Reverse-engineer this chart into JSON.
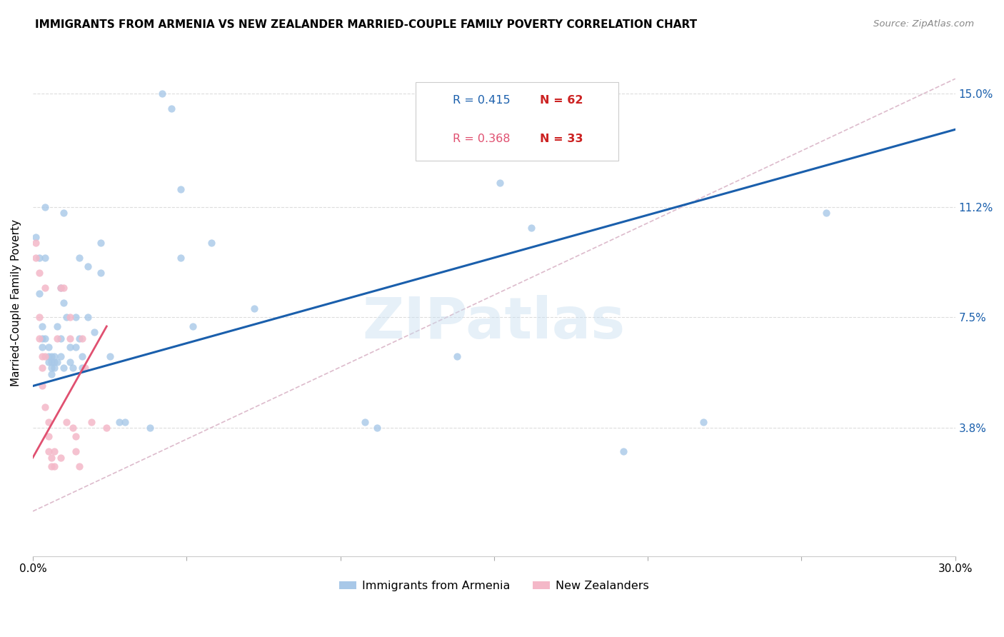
{
  "title": "IMMIGRANTS FROM ARMENIA VS NEW ZEALANDER MARRIED-COUPLE FAMILY POVERTY CORRELATION CHART",
  "source": "Source: ZipAtlas.com",
  "ylabel": "Married-Couple Family Poverty",
  "ytick_labels": [
    "15.0%",
    "11.2%",
    "7.5%",
    "3.8%"
  ],
  "ytick_values": [
    0.15,
    0.112,
    0.075,
    0.038
  ],
  "xlim": [
    0.0,
    0.3
  ],
  "ylim": [
    -0.005,
    0.165
  ],
  "color_blue": "#a8c8e8",
  "color_pink": "#f4b8c8",
  "trendline_blue": "#1a5fac",
  "trendline_pink": "#e05070",
  "trendline_dashed_color": "#ddbbcc",
  "watermark": "ZIPatlas",
  "blue_scatter": [
    [
      0.001,
      0.102
    ],
    [
      0.002,
      0.095
    ],
    [
      0.002,
      0.083
    ],
    [
      0.003,
      0.072
    ],
    [
      0.003,
      0.068
    ],
    [
      0.003,
      0.065
    ],
    [
      0.004,
      0.112
    ],
    [
      0.004,
      0.095
    ],
    [
      0.004,
      0.068
    ],
    [
      0.005,
      0.065
    ],
    [
      0.005,
      0.062
    ],
    [
      0.005,
      0.06
    ],
    [
      0.006,
      0.062
    ],
    [
      0.006,
      0.06
    ],
    [
      0.006,
      0.058
    ],
    [
      0.006,
      0.056
    ],
    [
      0.007,
      0.062
    ],
    [
      0.007,
      0.06
    ],
    [
      0.007,
      0.058
    ],
    [
      0.008,
      0.072
    ],
    [
      0.008,
      0.06
    ],
    [
      0.009,
      0.085
    ],
    [
      0.009,
      0.068
    ],
    [
      0.009,
      0.062
    ],
    [
      0.01,
      0.058
    ],
    [
      0.01,
      0.11
    ],
    [
      0.01,
      0.08
    ],
    [
      0.011,
      0.075
    ],
    [
      0.012,
      0.065
    ],
    [
      0.012,
      0.06
    ],
    [
      0.013,
      0.058
    ],
    [
      0.014,
      0.075
    ],
    [
      0.014,
      0.065
    ],
    [
      0.015,
      0.095
    ],
    [
      0.015,
      0.068
    ],
    [
      0.016,
      0.062
    ],
    [
      0.016,
      0.058
    ],
    [
      0.018,
      0.092
    ],
    [
      0.018,
      0.075
    ],
    [
      0.02,
      0.07
    ],
    [
      0.022,
      0.1
    ],
    [
      0.022,
      0.09
    ],
    [
      0.025,
      0.062
    ],
    [
      0.028,
      0.04
    ],
    [
      0.03,
      0.04
    ],
    [
      0.038,
      0.038
    ],
    [
      0.042,
      0.15
    ],
    [
      0.045,
      0.145
    ],
    [
      0.048,
      0.118
    ],
    [
      0.048,
      0.095
    ],
    [
      0.052,
      0.072
    ],
    [
      0.058,
      0.1
    ],
    [
      0.072,
      0.078
    ],
    [
      0.108,
      0.04
    ],
    [
      0.112,
      0.038
    ],
    [
      0.138,
      0.062
    ],
    [
      0.152,
      0.12
    ],
    [
      0.162,
      0.105
    ],
    [
      0.192,
      0.03
    ],
    [
      0.218,
      0.04
    ],
    [
      0.258,
      0.11
    ]
  ],
  "pink_scatter": [
    [
      0.001,
      0.1
    ],
    [
      0.001,
      0.095
    ],
    [
      0.002,
      0.09
    ],
    [
      0.002,
      0.075
    ],
    [
      0.002,
      0.068
    ],
    [
      0.003,
      0.062
    ],
    [
      0.003,
      0.058
    ],
    [
      0.003,
      0.052
    ],
    [
      0.004,
      0.085
    ],
    [
      0.004,
      0.062
    ],
    [
      0.004,
      0.045
    ],
    [
      0.005,
      0.04
    ],
    [
      0.005,
      0.035
    ],
    [
      0.005,
      0.03
    ],
    [
      0.006,
      0.028
    ],
    [
      0.006,
      0.025
    ],
    [
      0.007,
      0.03
    ],
    [
      0.007,
      0.025
    ],
    [
      0.008,
      0.068
    ],
    [
      0.009,
      0.085
    ],
    [
      0.009,
      0.028
    ],
    [
      0.01,
      0.085
    ],
    [
      0.011,
      0.04
    ],
    [
      0.012,
      0.075
    ],
    [
      0.012,
      0.068
    ],
    [
      0.013,
      0.038
    ],
    [
      0.014,
      0.035
    ],
    [
      0.014,
      0.03
    ],
    [
      0.015,
      0.025
    ],
    [
      0.016,
      0.068
    ],
    [
      0.017,
      0.058
    ],
    [
      0.019,
      0.04
    ],
    [
      0.024,
      0.038
    ]
  ],
  "blue_trendline_x": [
    0.0,
    0.3
  ],
  "blue_trendline_y": [
    0.052,
    0.138
  ],
  "pink_trendline_x": [
    0.0,
    0.024
  ],
  "pink_trendline_y": [
    0.028,
    0.072
  ],
  "dashed_trendline_x": [
    0.0,
    0.3
  ],
  "dashed_trendline_y": [
    0.01,
    0.155
  ]
}
